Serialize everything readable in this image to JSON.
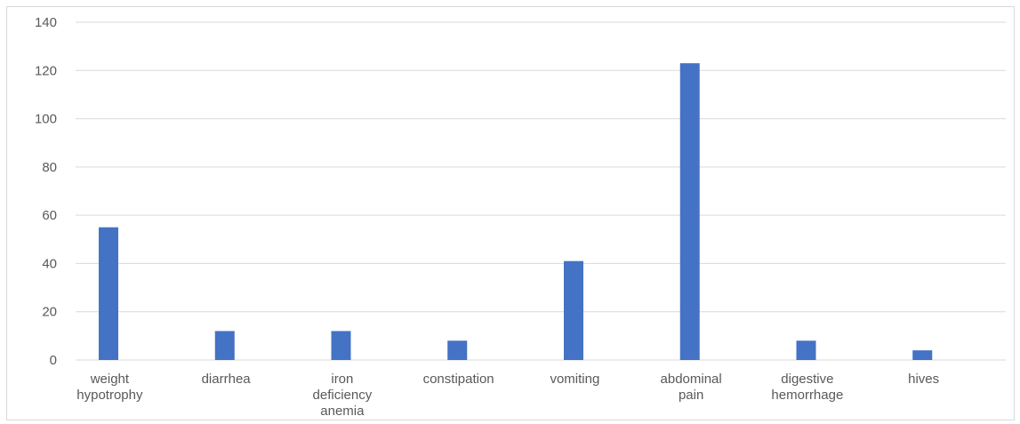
{
  "chart_data": {
    "type": "bar",
    "title": "",
    "xlabel": "",
    "ylabel": "",
    "ylim": [
      0,
      140
    ],
    "yticks": [
      0,
      20,
      40,
      60,
      80,
      100,
      120,
      140
    ],
    "grid": true,
    "legend": "none",
    "bar_color": "#4472C4",
    "grid_color": "#d9d9d9",
    "categories": [
      [
        "weight",
        "hypotrophy"
      ],
      [
        "diarrhea"
      ],
      [
        "iron",
        "deficiency",
        "anemia"
      ],
      [
        "constipation"
      ],
      [
        "vomiting"
      ],
      [
        "abdominal",
        "pain"
      ],
      [
        "digestive",
        "hemorrhage"
      ],
      [
        "hives"
      ]
    ],
    "series": [
      {
        "values": [
          55,
          12,
          12,
          8,
          41,
          123,
          8,
          4
        ]
      }
    ]
  }
}
